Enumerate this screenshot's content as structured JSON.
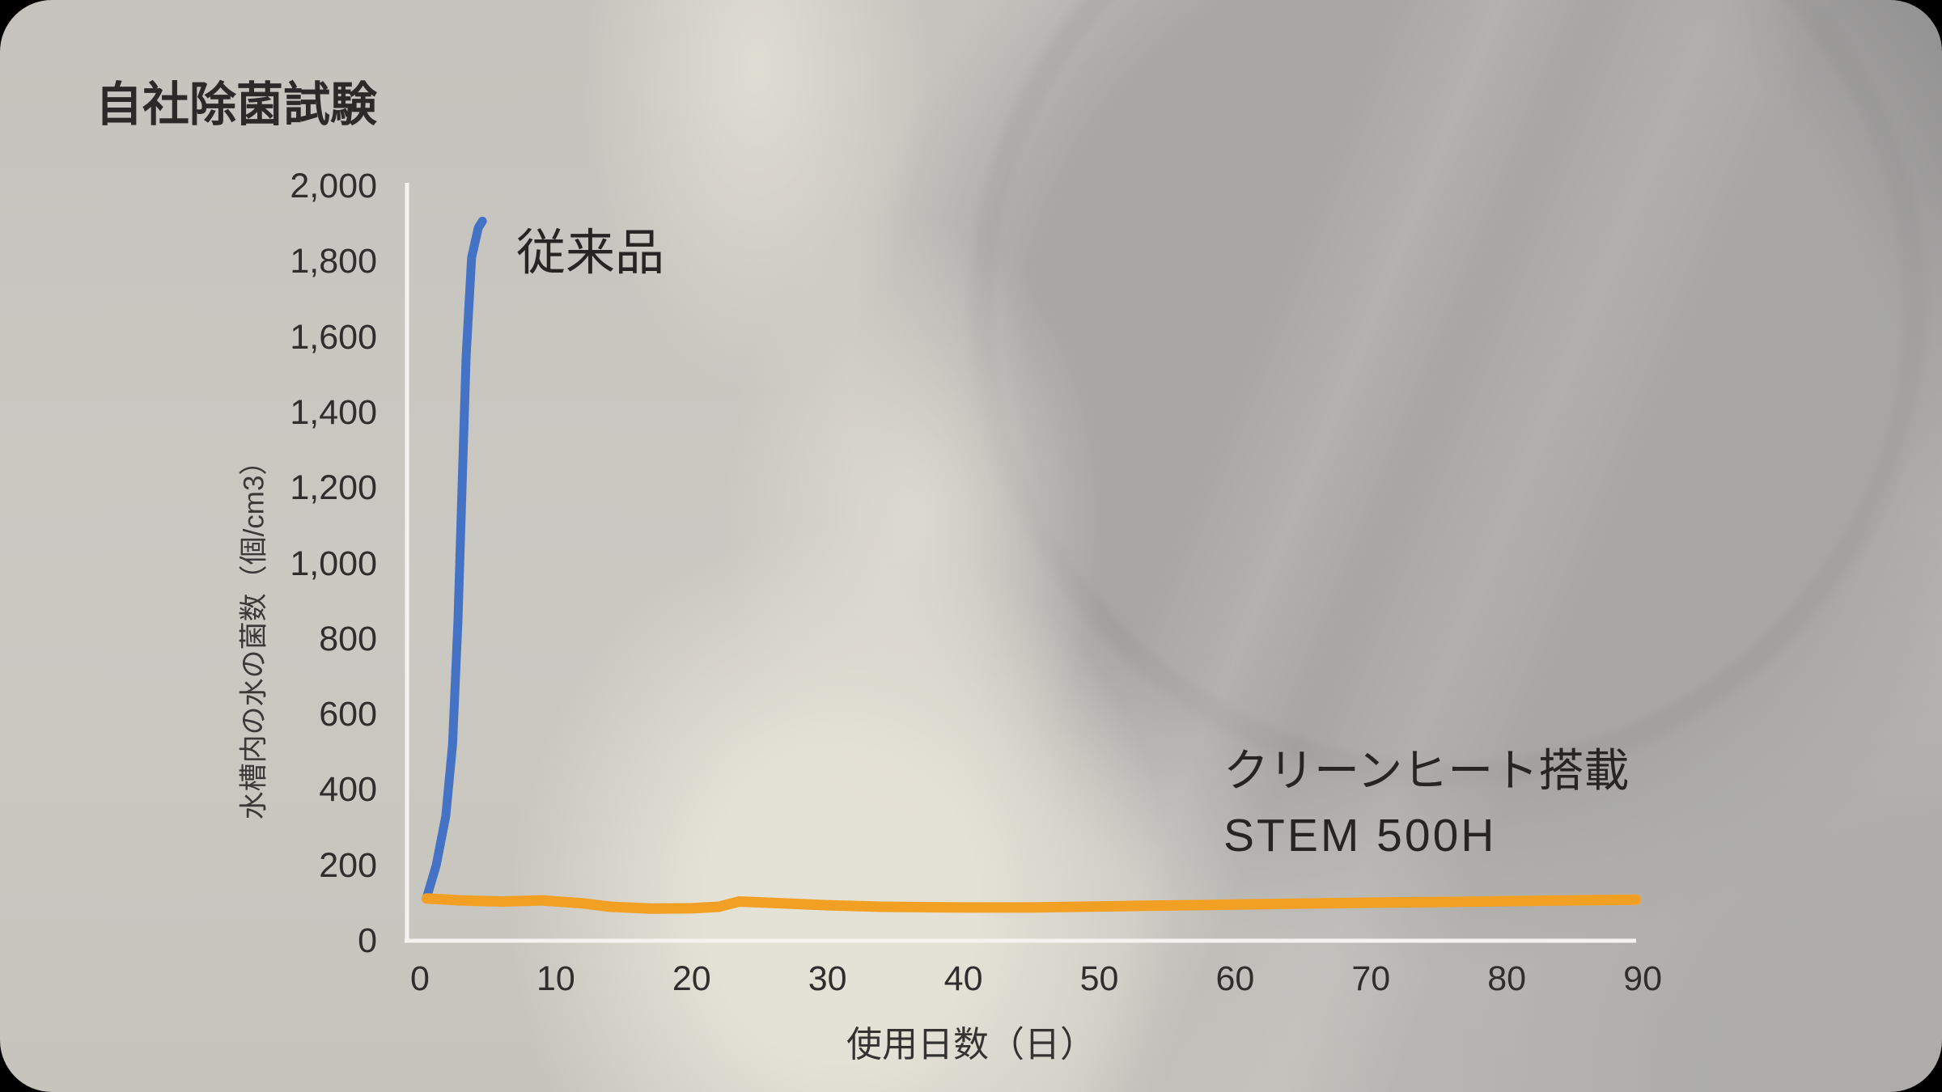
{
  "colors": {
    "conventional_line_blue": "#4472c4",
    "stem_line_orange": "#f2a024",
    "axis_line": "#f4f3f0",
    "text_dark": "#2d2c2a",
    "background_light_gray": "#c9c6c1",
    "background_ivory_highlight": "#e0ddd3",
    "background_circle_gray": "#a7a6a5"
  },
  "chart_data": {
    "type": "line",
    "title": "自社除菌試験",
    "xlabel": "使用日数（日）",
    "ylabel": "水槽内の水の菌数（個/cm3）",
    "xlim": [
      0,
      90
    ],
    "ylim": [
      0,
      2000
    ],
    "grid": false,
    "legend_position": "inline text annotations beside each line",
    "x_ticks": [
      0,
      10,
      20,
      30,
      40,
      50,
      60,
      70,
      80,
      90
    ],
    "x_tick_labels": [
      "0",
      "10",
      "20",
      "30",
      "40",
      "50",
      "60",
      "70",
      "80",
      "90"
    ],
    "y_ticks": [
      2000,
      1800,
      1600,
      1400,
      1200,
      1000,
      800,
      600,
      400,
      200,
      0
    ],
    "y_tick_labels": [
      "2,000",
      "1,800",
      "1,600",
      "1,400",
      "1,200",
      "1,000",
      "800",
      "600",
      "400",
      "200",
      "0"
    ],
    "series": [
      {
        "name": "従来品",
        "annotation": "従来品",
        "color": "#4472c4",
        "x": [
          0.5,
          1.2,
          1.9,
          2.4,
          2.8,
          3.1,
          3.4,
          3.8,
          4.3,
          4.6
        ],
        "y": [
          115,
          200,
          330,
          520,
          850,
          1200,
          1550,
          1810,
          1890,
          1907
        ]
      },
      {
        "name": "クリーンヒート搭載 STEM 500H",
        "annotation_lines": [
          "クリーンヒート搭載",
          "STEM 500H"
        ],
        "color": "#f2a024",
        "x": [
          0.5,
          3,
          6,
          9,
          12,
          14,
          17,
          20,
          22,
          23.5,
          26,
          30,
          34,
          40,
          45,
          52,
          58,
          64,
          70,
          76,
          82,
          89.5
        ],
        "y": [
          112,
          107,
          104,
          107,
          99,
          90,
          85,
          86,
          90,
          104,
          100,
          94,
          90,
          88,
          88,
          92,
          95,
          98,
          101,
          103,
          106,
          109
        ]
      }
    ]
  }
}
